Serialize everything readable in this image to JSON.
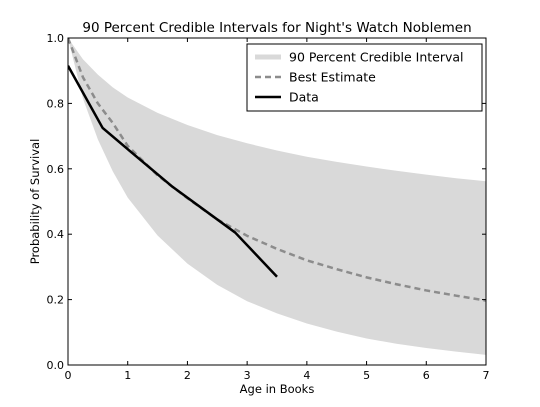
{
  "chart_data": {
    "type": "line",
    "title": "90 Percent Credible Intervals for Night's Watch Noblemen",
    "xlabel": "Age in Books",
    "ylabel": "Probability of Survival",
    "xlim": [
      0,
      7
    ],
    "ylim": [
      0,
      1.0
    ],
    "xticks": [
      0,
      1,
      2,
      3,
      4,
      5,
      6,
      7
    ],
    "yticks": [
      0.0,
      0.2,
      0.4,
      0.6,
      0.8,
      1.0
    ],
    "xtick_labels": [
      "0",
      "1",
      "2",
      "3",
      "4",
      "5",
      "6",
      "7"
    ],
    "ytick_labels": [
      "0.0",
      "0.2",
      "0.4",
      "0.6",
      "0.8",
      "1.0"
    ],
    "grid": false,
    "legend_position": "top-right",
    "interval": {
      "name": "90 Percent Credible Interval",
      "color": "#d9d9d9",
      "x": [
        0.0,
        0.25,
        0.5,
        0.75,
        1.0,
        1.5,
        2.0,
        2.5,
        3.0,
        3.5,
        4.0,
        4.5,
        5.0,
        5.5,
        6.0,
        6.5,
        7.0
      ],
      "upper": [
        1.0,
        0.935,
        0.888,
        0.849,
        0.818,
        0.771,
        0.734,
        0.703,
        0.678,
        0.656,
        0.637,
        0.621,
        0.607,
        0.594,
        0.582,
        0.571,
        0.562
      ],
      "lower": [
        1.0,
        0.815,
        0.69,
        0.592,
        0.512,
        0.396,
        0.31,
        0.245,
        0.195,
        0.158,
        0.127,
        0.102,
        0.081,
        0.065,
        0.052,
        0.041,
        0.031
      ]
    },
    "series": [
      {
        "name": "Best Estimate",
        "style": "dashed",
        "color": "#8c8c8c",
        "x": [
          0.0,
          0.25,
          0.5,
          0.75,
          1.0,
          1.5,
          2.0,
          2.5,
          3.0,
          3.5,
          4.0,
          4.5,
          5.0,
          5.5,
          6.0,
          6.5,
          7.0
        ],
        "values": [
          1.0,
          0.88,
          0.8,
          0.74,
          0.67,
          0.58,
          0.51,
          0.445,
          0.395,
          0.355,
          0.32,
          0.293,
          0.268,
          0.247,
          0.228,
          0.212,
          0.197
        ]
      },
      {
        "name": "Data",
        "style": "solid",
        "color": "#000000",
        "x": [
          0.0,
          0.58,
          1.0,
          1.75,
          2.8,
          3.5
        ],
        "values": [
          0.915,
          0.725,
          0.66,
          0.545,
          0.405,
          0.27
        ]
      }
    ]
  }
}
